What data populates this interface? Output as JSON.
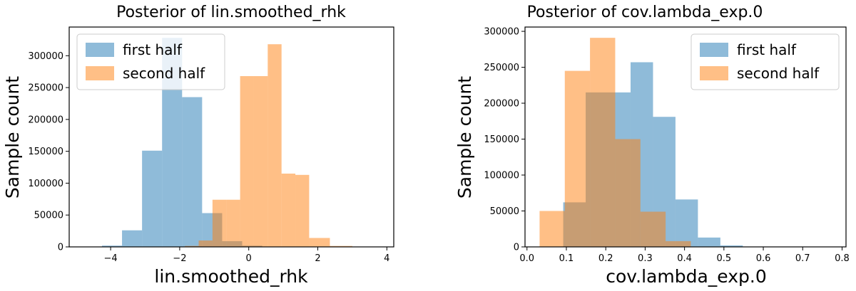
{
  "chart_data": [
    {
      "type": "bar",
      "title": "Posterior of lin.smoothed_rhk",
      "xlabel": "lin.smoothed_rhk",
      "ylabel": "Sample count",
      "xlim": [
        -5.2,
        4.2
      ],
      "ylim": [
        0,
        345000
      ],
      "xticks": [
        -4,
        -2,
        0,
        2,
        4
      ],
      "xtick_labels": [
        "−4",
        "−2",
        "0",
        "2",
        "4"
      ],
      "yticks": [
        0,
        50000,
        100000,
        150000,
        200000,
        250000,
        300000
      ],
      "ytick_labels": [
        "0",
        "50000",
        "100000",
        "150000",
        "200000",
        "250000",
        "300000"
      ],
      "legend": {
        "placement": "top-left"
      },
      "series": [
        {
          "name": "first half",
          "color": "#1f77b4",
          "alpha": 0.5,
          "bin_edges": [
            -4.25,
            -3.67,
            -3.09,
            -2.51,
            -1.93,
            -1.35,
            -0.77,
            -0.19,
            0.39,
            0.97,
            1.55,
            2.13
          ],
          "values": [
            2000,
            26000,
            151000,
            328000,
            235000,
            53000,
            9000,
            2000,
            500,
            200,
            100
          ]
        },
        {
          "name": "second half",
          "color": "#ff7f0e",
          "alpha": 0.5,
          "bin_edges": [
            -1.85,
            -1.45,
            -1.05,
            -0.65,
            -0.25,
            0.15,
            0.55,
            0.95,
            1.35,
            1.75,
            2.35,
            3.0
          ],
          "values": [
            1500,
            10000,
            74000,
            74000,
            268000,
            268000,
            318000,
            115000,
            113000,
            14000,
            1500
          ]
        }
      ]
    },
    {
      "type": "bar",
      "title": "Posterior of cov.lambda_exp.0",
      "xlabel": "cov.lambda_exp.0",
      "ylabel": "Sample count",
      "xlim": [
        -0.005,
        0.81
      ],
      "ylim": [
        0,
        306000
      ],
      "xticks": [
        0.0,
        0.1,
        0.2,
        0.3,
        0.4,
        0.5,
        0.6,
        0.7,
        0.8
      ],
      "xtick_labels": [
        "0.0",
        "0.1",
        "0.2",
        "0.3",
        "0.4",
        "0.5",
        "0.6",
        "0.7",
        "0.8"
      ],
      "yticks": [
        0,
        50000,
        100000,
        150000,
        200000,
        250000,
        300000
      ],
      "ytick_labels": [
        "0",
        "50000",
        "100000",
        "150000",
        "200000",
        "250000",
        "300000"
      ],
      "legend": {
        "placement": "top-right"
      },
      "series": [
        {
          "name": "first half",
          "color": "#1f77b4",
          "alpha": 0.5,
          "bin_edges": [
            0.035,
            0.092,
            0.149,
            0.206,
            0.263,
            0.32,
            0.377,
            0.434,
            0.491,
            0.548,
            0.605,
            0.662
          ],
          "values": [
            0,
            62000,
            215000,
            215000,
            257000,
            181000,
            66000,
            13000,
            2000,
            500,
            100
          ]
        },
        {
          "name": "second half",
          "color": "#ff7f0e",
          "alpha": 0.5,
          "bin_edges": [
            0.032,
            0.096,
            0.16,
            0.224,
            0.288,
            0.352,
            0.416
          ],
          "values": [
            50000,
            245000,
            291000,
            150000,
            49000,
            8000
          ]
        }
      ]
    }
  ]
}
